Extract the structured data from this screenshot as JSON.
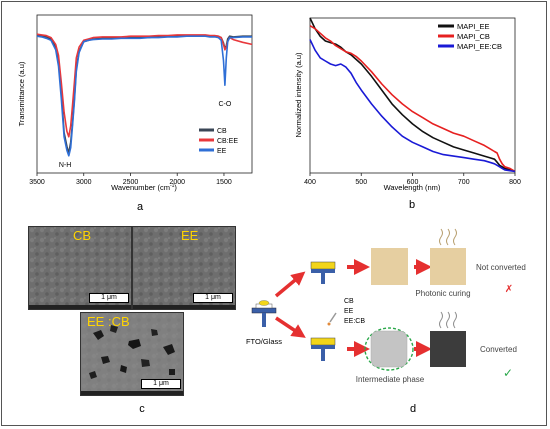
{
  "chart_data": [
    {
      "type": "line",
      "panel": "a",
      "xlabel": "Wavenumber (cm",
      "xlabel_sup": "-1",
      "xlabel_end": ")",
      "ylabel": "Transmittance (a.u)",
      "xlim": [
        3500,
        1200
      ],
      "xticks": [
        3500,
        3000,
        2500,
        2000,
        1500
      ],
      "x": [
        3500,
        3450,
        3400,
        3350,
        3300,
        3270,
        3240,
        3210,
        3180,
        3160,
        3140,
        3120,
        3100,
        3080,
        3050,
        3000,
        2950,
        2900,
        2800,
        2700,
        2600,
        2500,
        2400,
        2300,
        2200,
        2100,
        2000,
        1900,
        1800,
        1700,
        1650,
        1600,
        1560,
        1530,
        1505,
        1490,
        1475,
        1460,
        1440,
        1400,
        1300,
        1200
      ],
      "series": [
        {
          "name": "CB",
          "color": "#3a4656",
          "values": [
            0.965,
            0.962,
            0.955,
            0.94,
            0.88,
            0.78,
            0.55,
            0.25,
            0.15,
            0.1,
            0.18,
            0.32,
            0.5,
            0.72,
            0.85,
            0.92,
            0.93,
            0.94,
            0.945,
            0.945,
            0.95,
            0.95,
            0.95,
            0.95,
            0.96,
            0.96,
            0.96,
            0.965,
            0.965,
            0.965,
            0.96,
            0.96,
            0.96,
            0.95,
            0.91,
            0.87,
            0.89,
            0.94,
            0.96,
            0.955,
            0.96,
            0.96
          ]
        },
        {
          "name": "CB:EE",
          "color": "#e8383c",
          "values": [
            0.975,
            0.97,
            0.965,
            0.95,
            0.9,
            0.82,
            0.62,
            0.4,
            0.26,
            0.22,
            0.3,
            0.45,
            0.62,
            0.8,
            0.88,
            0.93,
            0.94,
            0.95,
            0.955,
            0.955,
            0.955,
            0.96,
            0.96,
            0.96,
            0.965,
            0.965,
            0.97,
            0.97,
            0.97,
            0.97,
            0.965,
            0.965,
            0.96,
            0.95,
            0.9,
            0.86,
            0.88,
            0.92,
            0.95,
            0.935,
            0.915,
            0.9
          ]
        },
        {
          "name": "EE",
          "color": "#2f6fd6",
          "values": [
            0.96,
            0.955,
            0.945,
            0.93,
            0.86,
            0.74,
            0.5,
            0.22,
            0.12,
            0.08,
            0.14,
            0.3,
            0.48,
            0.7,
            0.84,
            0.92,
            0.93,
            0.935,
            0.94,
            0.94,
            0.945,
            0.945,
            0.945,
            0.95,
            0.95,
            0.955,
            0.955,
            0.96,
            0.96,
            0.96,
            0.955,
            0.955,
            0.95,
            0.93,
            0.78,
            0.6,
            0.8,
            0.92,
            0.95,
            0.95,
            0.955,
            0.955
          ]
        }
      ],
      "annotations": [
        {
          "text": "N-H",
          "x": 3200,
          "y": 0.02
        },
        {
          "text": "C-O",
          "x": 1490,
          "y": 0.47
        }
      ],
      "legend": "bottom-right",
      "caption": "a"
    },
    {
      "type": "line",
      "panel": "b",
      "xlabel": "Wavelength (nm)",
      "ylabel": "Normalized intensity (a.u)",
      "xlim": [
        400,
        800
      ],
      "xticks": [
        400,
        500,
        600,
        700,
        800
      ],
      "x": [
        400,
        410,
        420,
        430,
        440,
        450,
        460,
        470,
        480,
        490,
        500,
        520,
        540,
        560,
        580,
        600,
        620,
        640,
        660,
        680,
        700,
        720,
        740,
        750,
        760,
        765,
        770,
        775,
        780,
        790,
        800
      ],
      "series": [
        {
          "name": "MAPI_EE",
          "color": "#111111",
          "values": [
            1.0,
            0.93,
            0.88,
            0.85,
            0.84,
            0.83,
            0.81,
            0.78,
            0.76,
            0.73,
            0.7,
            0.62,
            0.53,
            0.44,
            0.37,
            0.31,
            0.26,
            0.22,
            0.19,
            0.16,
            0.14,
            0.12,
            0.1,
            0.09,
            0.08,
            0.06,
            0.04,
            0.03,
            0.02,
            0.01,
            0.0
          ]
        },
        {
          "name": "MAPI_CB",
          "color": "#e62020",
          "values": [
            0.95,
            0.93,
            0.9,
            0.87,
            0.85,
            0.82,
            0.8,
            0.78,
            0.77,
            0.75,
            0.72,
            0.65,
            0.57,
            0.5,
            0.44,
            0.39,
            0.35,
            0.31,
            0.28,
            0.25,
            0.23,
            0.2,
            0.17,
            0.15,
            0.13,
            0.12,
            0.08,
            0.05,
            0.03,
            0.02,
            0.0
          ]
        },
        {
          "name": "MAPI_EE:CB",
          "color": "#1a1ad6",
          "values": [
            0.86,
            0.79,
            0.74,
            0.72,
            0.7,
            0.69,
            0.7,
            0.68,
            0.64,
            0.58,
            0.53,
            0.44,
            0.36,
            0.29,
            0.23,
            0.19,
            0.16,
            0.13,
            0.11,
            0.1,
            0.09,
            0.08,
            0.07,
            0.06,
            0.05,
            0.04,
            0.03,
            0.02,
            0.01,
            0.005,
            0.0
          ]
        }
      ],
      "legend": "top-right",
      "caption": "b"
    }
  ],
  "panel_c": {
    "tiles": [
      {
        "label": "CB",
        "scale": "1 μm"
      },
      {
        "label": "EE",
        "scale": "1 μm"
      },
      {
        "label": "EE :CB",
        "scale": "1 μm"
      }
    ],
    "caption": "c"
  },
  "panel_d": {
    "substrate_label": "FTO/Glass",
    "solvents": [
      "CB",
      "EE",
      "EE:CB"
    ],
    "not_converted": "Not converted",
    "not_converted_mark": "✗",
    "photonic_curing": "Photonic curing",
    "converted": "Converted",
    "converted_mark": "✓",
    "intermediate": "Intermediate phase",
    "caption": "d"
  },
  "colors": {
    "arrow_red": "#e53030",
    "film_beige": "#e6cfa1",
    "film_dark": "#3c3c3c",
    "intermediate_grey": "#c4c4c4",
    "substrate_blue": "#3a5fa8",
    "film_yellow": "#f2d51a"
  }
}
